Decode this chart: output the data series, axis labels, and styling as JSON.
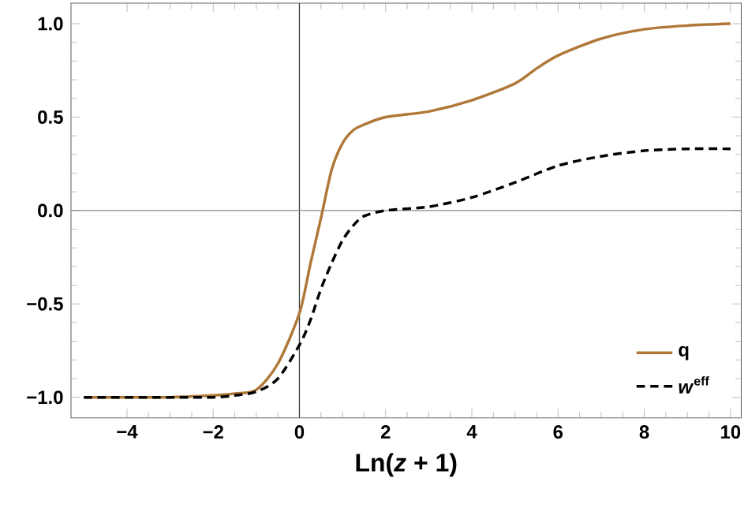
{
  "chart_data": {
    "type": "line",
    "xlabel": "Ln(*z* + 1)",
    "xlim": [
      -5.3,
      10.25
    ],
    "ylim": [
      -1.11,
      1.11
    ],
    "xticks": [
      {
        "value": -4,
        "label": "−4"
      },
      {
        "value": -2,
        "label": "−2"
      },
      0,
      2,
      4,
      6,
      8,
      10
    ],
    "yticks": [
      {
        "value": -1,
        "label": "−1.0"
      },
      {
        "value": -0.5,
        "label": "−0.5"
      },
      {
        "value": 0,
        "label": "0.0"
      },
      0.5,
      {
        "value": 1,
        "label": "1.0"
      }
    ],
    "legend": "bottom right",
    "marker": "none",
    "ref_lines": [
      {
        "axis": "x",
        "value": 0,
        "color": "#404040"
      },
      {
        "axis": "y",
        "value": 0,
        "color": "#8a8a8a"
      }
    ],
    "series": [
      {
        "name": "q",
        "color": "#b07838",
        "line_style": "solid",
        "x": [
          -5,
          -3,
          -2,
          -1.5,
          -1,
          -0.5,
          0,
          0.25,
          0.5,
          0.75,
          1,
          1.25,
          1.5,
          2,
          3,
          4,
          5,
          5.5,
          6,
          7,
          8,
          9,
          10
        ],
        "values": [
          -1,
          -1,
          -0.99,
          -0.98,
          -0.96,
          -0.82,
          -0.55,
          -0.29,
          -0.04,
          0.22,
          0.36,
          0.43,
          0.46,
          0.5,
          0.53,
          0.59,
          0.68,
          0.76,
          0.83,
          0.92,
          0.97,
          0.99,
          1.0
        ]
      },
      {
        "name": "*w*$^{eff}$",
        "color": "#000000",
        "line_style": "dashed",
        "x": [
          -5,
          -3,
          -2,
          -1.5,
          -1,
          -0.5,
          0,
          0.25,
          0.5,
          0.75,
          1,
          1.25,
          1.5,
          2,
          3,
          4,
          5,
          6,
          7,
          8,
          9,
          10
        ],
        "values": [
          -1,
          -1,
          -1,
          -0.99,
          -0.97,
          -0.9,
          -0.72,
          -0.59,
          -0.42,
          -0.28,
          -0.16,
          -0.08,
          -0.03,
          0.0,
          0.02,
          0.07,
          0.15,
          0.24,
          0.29,
          0.32,
          0.33,
          0.33
        ]
      }
    ]
  }
}
